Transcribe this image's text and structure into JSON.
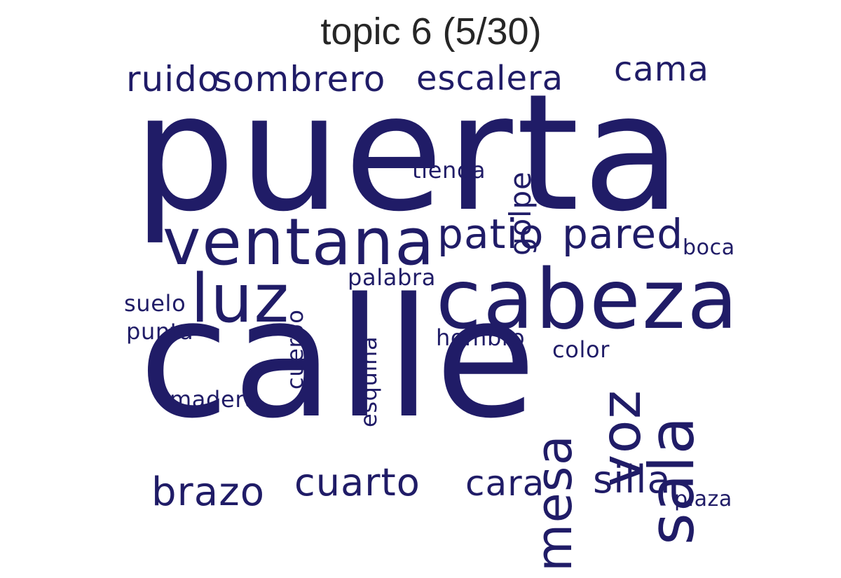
{
  "title": "topic 6 (5/30)",
  "color": "#201c67",
  "words": [
    {
      "text": "puerta"
    },
    {
      "text": "calle"
    },
    {
      "text": "cabeza"
    },
    {
      "text": "ventana"
    },
    {
      "text": "luz"
    },
    {
      "text": "sala"
    },
    {
      "text": "voz"
    },
    {
      "text": "mesa"
    },
    {
      "text": "patio"
    },
    {
      "text": "pared"
    },
    {
      "text": "cuarto"
    },
    {
      "text": "brazo"
    },
    {
      "text": "silla"
    },
    {
      "text": "cara"
    },
    {
      "text": "escalera"
    },
    {
      "text": "sombrero"
    },
    {
      "text": "cama"
    },
    {
      "text": "ruido"
    },
    {
      "text": "golpe"
    },
    {
      "text": "cuerpo"
    },
    {
      "text": "esquina"
    },
    {
      "text": "hombro"
    },
    {
      "text": "palabra"
    },
    {
      "text": "tienda"
    },
    {
      "text": "suelo"
    },
    {
      "text": "punta"
    },
    {
      "text": "boca"
    },
    {
      "text": "madera"
    },
    {
      "text": "plaza"
    },
    {
      "text": "color"
    }
  ]
}
